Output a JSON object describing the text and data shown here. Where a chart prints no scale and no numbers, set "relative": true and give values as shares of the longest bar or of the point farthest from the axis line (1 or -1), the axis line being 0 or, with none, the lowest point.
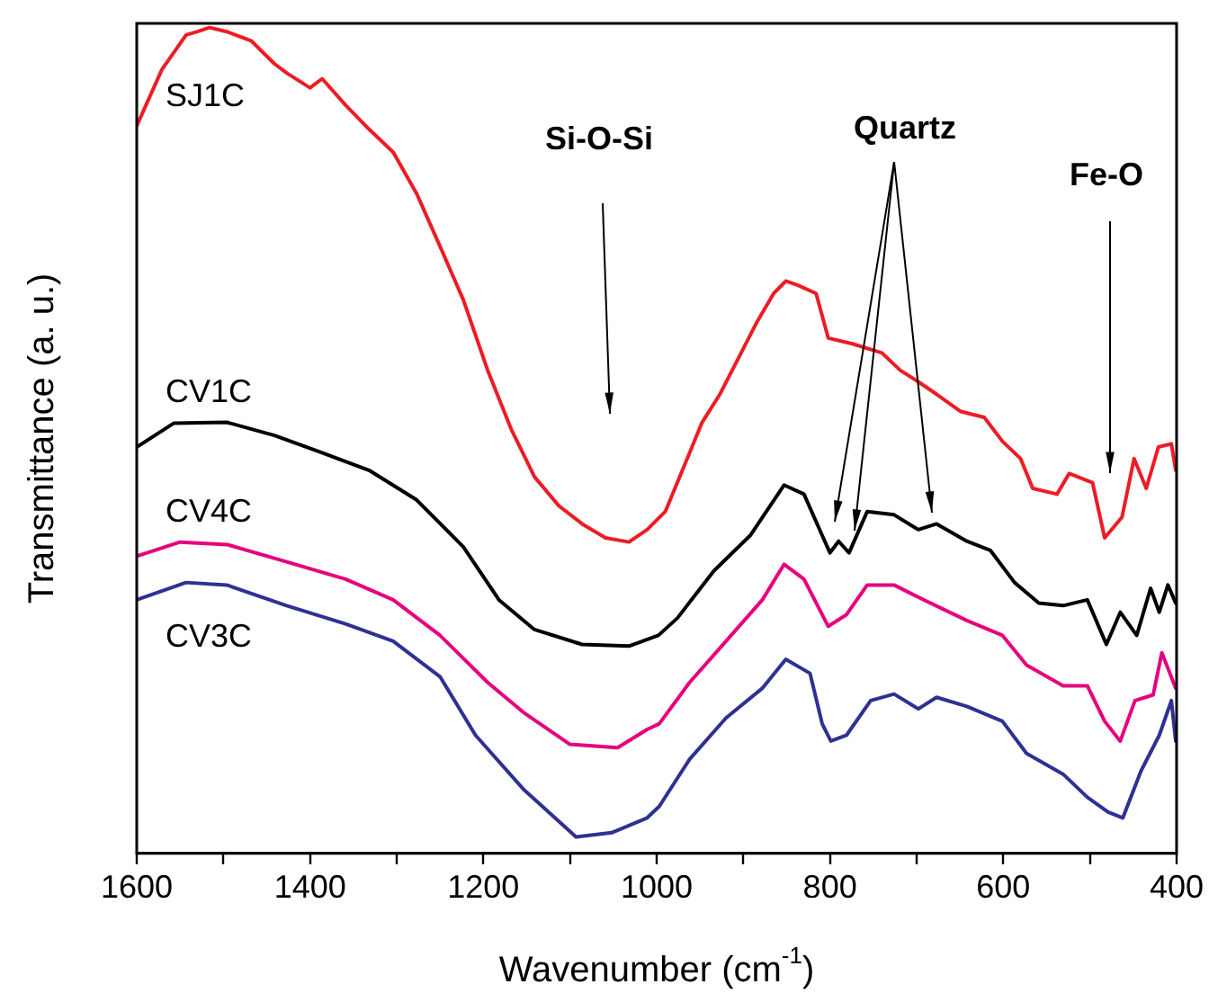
{
  "chart_data": {
    "type": "line",
    "relative": true,
    "xlabel": "Wavenumber (cm$^{-1}$)",
    "ylabel": "Transmittance (a. u.)",
    "xlim": [
      1600,
      400
    ],
    "xticks": [
      1600,
      {
        "value": 1500,
        "label": null
      },
      1400,
      {
        "value": 1300,
        "label": null
      },
      1200,
      {
        "value": 1100,
        "label": null
      },
      1000,
      {
        "value": 900,
        "label": null
      },
      800,
      {
        "value": 700,
        "label": null
      },
      600,
      {
        "value": 500,
        "label": null
      },
      400
    ],
    "grid": false,
    "legend": false,
    "marker": "none",
    "line_style": "solid",
    "annotations": [
      "Si-O-Si",
      "Quartz",
      "Fe-O"
    ],
    "series": [
      {
        "name": "SJ1C",
        "color": "#ed1c24",
        "x": [
          1600,
          1571,
          1543,
          1530,
          1516,
          1496,
          1468,
          1441,
          1427,
          1400,
          1386,
          1359,
          1332,
          1304,
          1277,
          1250,
          1223,
          1195,
          1168,
          1141,
          1113,
          1086,
          1059,
          1032,
          1011,
          990,
          962,
          948,
          927,
          906,
          885,
          865,
          851,
          837,
          816,
          802,
          774,
          740,
          719,
          698,
          677,
          649,
          622,
          601,
          580,
          566,
          538,
          524,
          497,
          483,
          463,
          449,
          435,
          421,
          406,
          401
        ],
        "values": [
          0.881,
          0.949,
          0.991,
          0.995,
          1.0,
          0.995,
          0.984,
          0.956,
          0.945,
          0.927,
          0.938,
          0.906,
          0.877,
          0.849,
          0.799,
          0.735,
          0.67,
          0.585,
          0.514,
          0.456,
          0.421,
          0.399,
          0.382,
          0.377,
          0.392,
          0.414,
          0.485,
          0.521,
          0.556,
          0.599,
          0.642,
          0.678,
          0.693,
          0.688,
          0.678,
          0.624,
          0.617,
          0.606,
          0.585,
          0.571,
          0.556,
          0.535,
          0.528,
          0.499,
          0.478,
          0.442,
          0.435,
          0.46,
          0.449,
          0.382,
          0.407,
          0.478,
          0.442,
          0.492,
          0.496,
          0.464
        ]
      },
      {
        "name": "CV1C",
        "color": "#000000",
        "x": [
          1600,
          1557,
          1496,
          1441,
          1386,
          1332,
          1277,
          1223,
          1182,
          1141,
          1086,
          1032,
          998,
          976,
          934,
          892,
          853,
          830,
          809,
          800,
          790,
          778,
          757,
          726,
          698,
          677,
          642,
          615,
          587,
          559,
          531,
          503,
          481,
          465,
          446,
          430,
          420,
          410,
          401
        ],
        "values": [
          0.492,
          0.521,
          0.522,
          0.506,
          0.485,
          0.464,
          0.428,
          0.371,
          0.307,
          0.271,
          0.253,
          0.251,
          0.264,
          0.285,
          0.342,
          0.385,
          0.446,
          0.435,
          0.385,
          0.364,
          0.378,
          0.364,
          0.414,
          0.41,
          0.392,
          0.399,
          0.378,
          0.367,
          0.328,
          0.303,
          0.3,
          0.307,
          0.253,
          0.292,
          0.264,
          0.321,
          0.292,
          0.325,
          0.303
        ]
      },
      {
        "name": "CV4C",
        "color": "#e6007e",
        "x": [
          1600,
          1550,
          1496,
          1427,
          1359,
          1304,
          1250,
          1195,
          1154,
          1100,
          1045,
          1011,
          997,
          962,
          920,
          878,
          853,
          830,
          802,
          781,
          757,
          726,
          684,
          642,
          601,
          573,
          531,
          503,
          483,
          465,
          448,
          427,
          417,
          401
        ],
        "values": [
          0.36,
          0.377,
          0.374,
          0.353,
          0.332,
          0.307,
          0.264,
          0.207,
          0.171,
          0.132,
          0.128,
          0.15,
          0.157,
          0.207,
          0.257,
          0.307,
          0.35,
          0.332,
          0.275,
          0.289,
          0.325,
          0.325,
          0.303,
          0.282,
          0.264,
          0.228,
          0.203,
          0.203,
          0.16,
          0.136,
          0.185,
          0.192,
          0.243,
          0.2
        ]
      },
      {
        "name": "CV3C",
        "color": "#2e3192",
        "x": [
          1600,
          1543,
          1496,
          1427,
          1359,
          1304,
          1250,
          1209,
          1154,
          1093,
          1052,
          1011,
          997,
          962,
          920,
          878,
          851,
          823,
          809,
          799,
          781,
          753,
          726,
          698,
          677,
          642,
          601,
          573,
          531,
          503,
          479,
          462,
          441,
          420,
          406,
          401
        ],
        "values": [
          0.307,
          0.328,
          0.325,
          0.3,
          0.278,
          0.257,
          0.214,
          0.143,
          0.078,
          0.02,
          0.025,
          0.043,
          0.057,
          0.114,
          0.164,
          0.2,
          0.235,
          0.218,
          0.157,
          0.136,
          0.143,
          0.185,
          0.193,
          0.175,
          0.189,
          0.178,
          0.16,
          0.121,
          0.096,
          0.068,
          0.05,
          0.043,
          0.1,
          0.143,
          0.185,
          0.136
        ]
      }
    ]
  }
}
